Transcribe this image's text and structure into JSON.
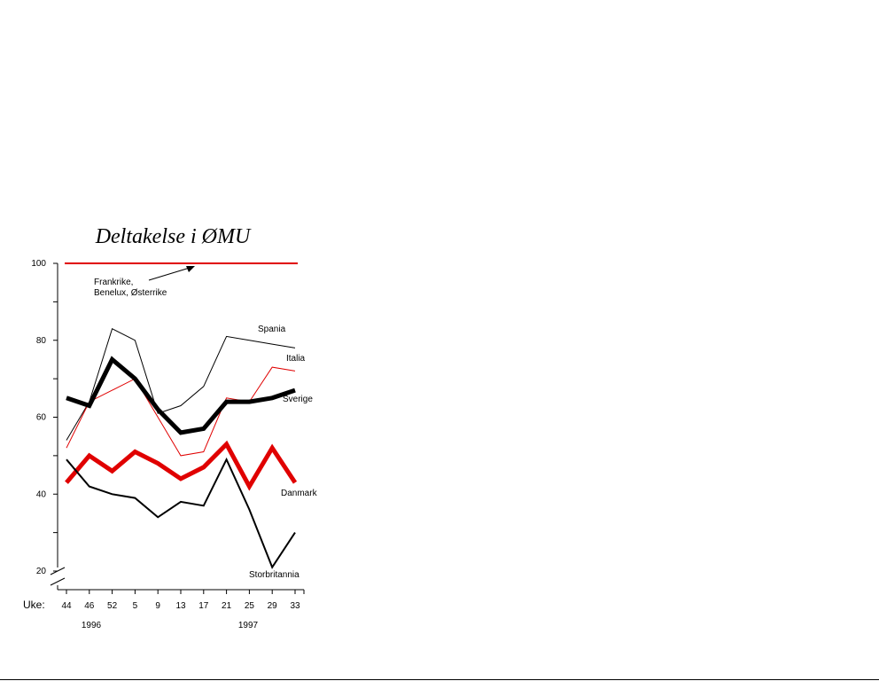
{
  "chart_data": {
    "type": "line",
    "title": "Deltakelse i ØMU",
    "xlabel": "Uke:",
    "categories": [
      "44",
      "46",
      "52",
      "5",
      "9",
      "13",
      "17",
      "21",
      "25",
      "29",
      "33"
    ],
    "year_labels": [
      "1996",
      "1997"
    ],
    "ylim": [
      20,
      100
    ],
    "yticks": [
      "20",
      "40",
      "60",
      "80",
      "100"
    ],
    "grid": false,
    "series": [
      {
        "name": "Frankrike, Benelux, Østerrike",
        "label_lines": [
          "Frankrike,",
          "Benelux, Østerrike"
        ],
        "color": "#e00000",
        "weight": "medium",
        "values": [
          100,
          100,
          100,
          100,
          100,
          100,
          100,
          100,
          100,
          100,
          100
        ]
      },
      {
        "name": "Spania",
        "color": "#000000",
        "weight": "thin",
        "values": [
          54,
          64,
          83,
          80,
          61,
          63,
          68,
          81,
          80,
          79,
          78
        ]
      },
      {
        "name": "Italia",
        "color": "#e00000",
        "weight": "thin",
        "values": [
          52,
          64,
          67,
          70,
          60,
          50,
          51,
          65,
          64,
          73,
          72
        ]
      },
      {
        "name": "Sverige",
        "color": "#000000",
        "weight": "thick",
        "values": [
          65,
          63,
          75,
          70,
          62,
          56,
          57,
          64,
          64,
          65,
          67
        ]
      },
      {
        "name": "Danmark",
        "color": "#e00000",
        "weight": "thick",
        "values": [
          43,
          50,
          46,
          51,
          48,
          44,
          47,
          53,
          42,
          52,
          43
        ]
      },
      {
        "name": "Storbritannia",
        "color": "#000000",
        "weight": "medium",
        "values": [
          49,
          42,
          40,
          39,
          34,
          38,
          37,
          49,
          36,
          21,
          30
        ]
      }
    ]
  }
}
